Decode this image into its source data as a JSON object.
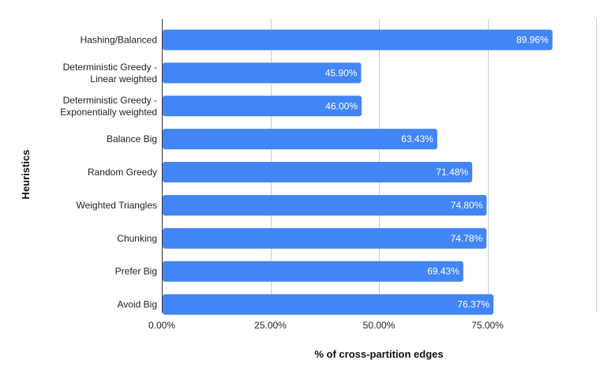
{
  "chart_data": {
    "type": "bar",
    "orientation": "horizontal",
    "categories": [
      [
        "Hashing/Balanced"
      ],
      [
        "Deterministic Greedy -",
        "Linear weighted"
      ],
      [
        "Deterministic Greedy -",
        "Exponentially weighted"
      ],
      [
        "Balance Big"
      ],
      [
        "Random Greedy"
      ],
      [
        "Weighted Triangles"
      ],
      [
        "Chunking"
      ],
      [
        "Prefer Big"
      ],
      [
        "Avoid Big"
      ]
    ],
    "values": [
      89.96,
      45.9,
      46.0,
      63.43,
      71.48,
      74.8,
      74.78,
      69.43,
      76.37
    ],
    "value_labels": [
      "89.96%",
      "45.90%",
      "46.00%",
      "63.43%",
      "71.48%",
      "74.80%",
      "74.78%",
      "69.43%",
      "76.37%"
    ],
    "x_ticks": [
      0,
      25,
      50,
      75
    ],
    "x_tick_labels": [
      "0.00%",
      "25.00%",
      "50.00%",
      "75.00%"
    ],
    "xlim": [
      0,
      100
    ],
    "xlabel": "% of cross-partition edges",
    "ylabel": "Heuristics",
    "title": "",
    "grid": true,
    "legend": "none",
    "bar_color": "#4285f4"
  }
}
